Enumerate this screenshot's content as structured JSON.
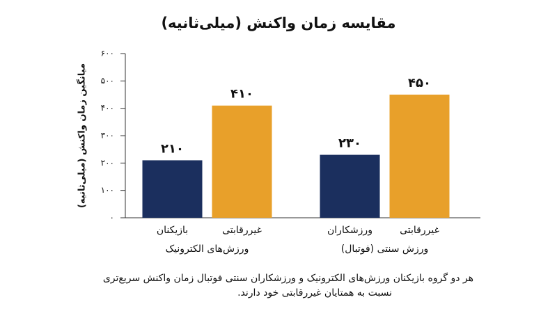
{
  "chart_data": {
    "type": "bar",
    "title": "مقایسه زمان واکنش (میلی‌ثانیه)",
    "y_label": "میانگین زمان واکنش (میلی‌ثانیه)",
    "categories": [
      "ورزش‌های الکترونیک",
      "ورزش سنتی (فوتبال)"
    ],
    "series": [
      {
        "labels": [
          "بازیکنان",
          "ورزشکاران"
        ],
        "color": "#1b2f5e",
        "values": [
          210,
          230
        ],
        "value_labels": [
          "۲۱۰",
          "۲۳۰"
        ]
      },
      {
        "labels": [
          "غیررقابتی",
          "غیررقابتی"
        ],
        "color": "#e8a02a",
        "values": [
          410,
          450
        ],
        "value_labels": [
          "۴۱۰",
          "۴۵۰"
        ]
      }
    ],
    "ylim": [
      0,
      600
    ],
    "yticks": [
      {
        "value": 0,
        "label": "۰"
      },
      {
        "value": 100,
        "label": "۱۰۰"
      },
      {
        "value": 200,
        "label": "۲۰۰"
      },
      {
        "value": 300,
        "label": "۳۰۰"
      },
      {
        "value": 400,
        "label": "۴۰۰"
      },
      {
        "value": 500,
        "label": "۵۰۰"
      },
      {
        "value": 600,
        "label": "۶۰۰"
      }
    ],
    "caption": [
      "هر دو گروه بازیکنان ورزش‌های الکترونیک و ورزشکاران سنتی فوتبال زمان واکنش سریع‌تری",
      "نسبت به همتایان غیررقابتی خود دارند."
    ]
  }
}
